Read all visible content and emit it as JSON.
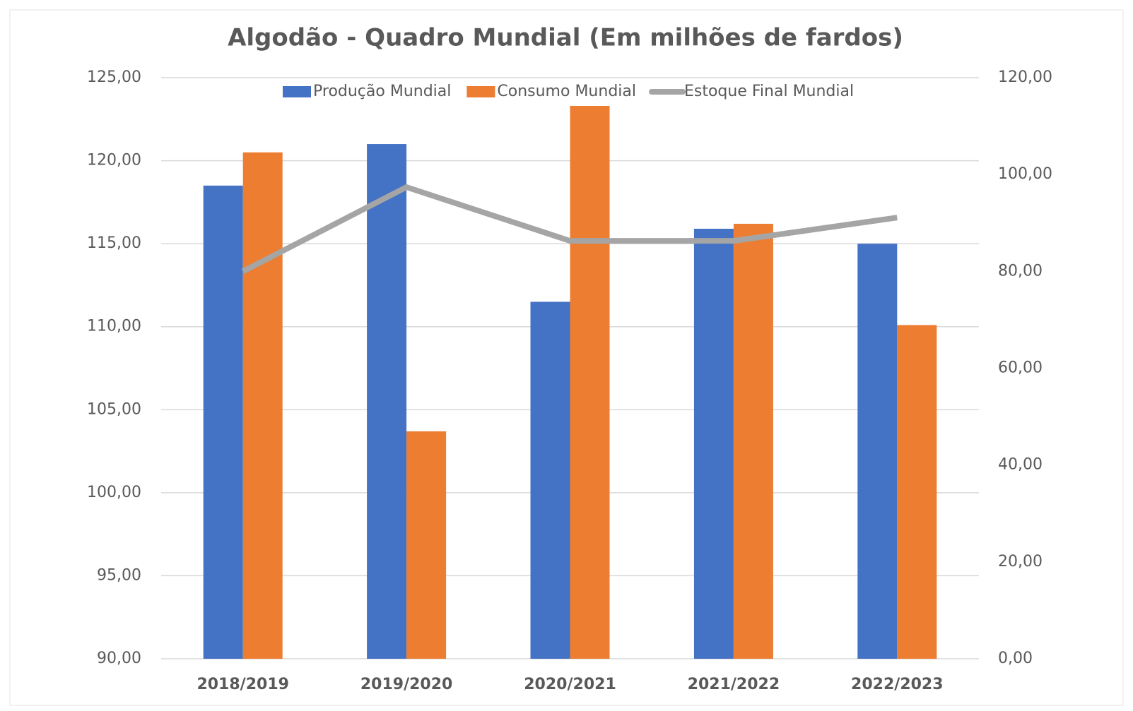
{
  "chart_data": {
    "type": "bar_line",
    "title": "Algodão - Quadro Mundial (Em milhões de fardos)",
    "categories": [
      "2018/2019",
      "2019/2020",
      "2020/2021",
      "2021/2022",
      "2022/2023"
    ],
    "series": [
      {
        "name": "Produção Mundial",
        "color": "#4472c4",
        "type": "bar",
        "values": [
          118.5,
          121.0,
          111.5,
          115.9,
          115.0
        ]
      },
      {
        "name": "Consumo Mundial",
        "color": "#ed7d31",
        "type": "bar",
        "values": [
          120.5,
          103.7,
          123.3,
          116.2,
          110.1
        ]
      },
      {
        "name": "Estoque Final Mundial",
        "color": "#a5a5a5",
        "type": "line",
        "axis": "y2",
        "values": [
          80.0,
          97.4,
          86.3,
          86.3,
          91.1
        ]
      }
    ],
    "ylim": [
      90,
      125
    ],
    "yticks": [
      {
        "value": 90,
        "label": "90,00"
      },
      {
        "value": 95,
        "label": "95,00"
      },
      {
        "value": 100,
        "label": "100,00"
      },
      {
        "value": 105,
        "label": "105,00"
      },
      {
        "value": 110,
        "label": "110,00"
      },
      {
        "value": 115,
        "label": "115,00"
      },
      {
        "value": 120,
        "label": "120,00"
      },
      {
        "value": 125,
        "label": "125,00"
      }
    ],
    "y2lim": [
      0,
      120
    ],
    "y2ticks": [
      {
        "value": 0,
        "label": "0,00"
      },
      {
        "value": 20,
        "label": "20,00"
      },
      {
        "value": 40,
        "label": "40,00"
      },
      {
        "value": 60,
        "label": "60,00"
      },
      {
        "value": 80,
        "label": "80,00"
      },
      {
        "value": 100,
        "label": "100,00"
      },
      {
        "value": 120,
        "label": "120,00"
      }
    ],
    "grid": true,
    "legend": "top"
  }
}
